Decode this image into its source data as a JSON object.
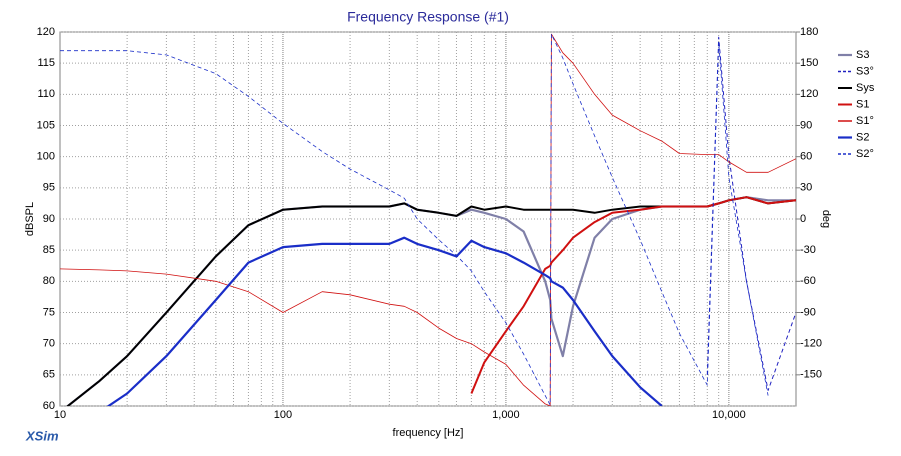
{
  "chart_data": {
    "type": "line",
    "title": "Frequency Response (#1)",
    "x_label": "frequency [Hz]",
    "y_label": "dBSPL",
    "y2_label": "deg",
    "watermark": "XSim",
    "xscale": "log",
    "grid": true,
    "xlim": [
      10,
      20000
    ],
    "xticks": [
      10,
      100,
      {
        "value": 1000,
        "label": "1,000"
      },
      {
        "value": 10000,
        "label": "10,000"
      }
    ],
    "xminor_ticks": [
      20,
      30,
      40,
      50,
      60,
      70,
      80,
      90,
      200,
      300,
      400,
      500,
      600,
      700,
      800,
      900,
      2000,
      3000,
      4000,
      5000,
      6000,
      7000,
      8000,
      9000
    ],
    "ylim": [
      60,
      120
    ],
    "yticks": [
      60,
      65,
      70,
      75,
      80,
      85,
      90,
      95,
      100,
      105,
      110,
      115,
      120
    ],
    "y2lim": [
      -180,
      180
    ],
    "y2ticks": [
      -150,
      -120,
      -90,
      -60,
      -30,
      0,
      30,
      60,
      90,
      120,
      150,
      180
    ],
    "x": [
      10,
      15,
      20,
      30,
      50,
      70,
      100,
      150,
      200,
      300,
      350,
      400,
      500,
      600,
      700,
      800,
      1000,
      1200,
      1500,
      1580,
      1600,
      1800,
      2000,
      2500,
      3000,
      4000,
      5000,
      6000,
      8000,
      9000,
      10000,
      12000,
      15000,
      20000
    ],
    "series": [
      {
        "name": "S3",
        "color": "#8080a8",
        "width": 2.2,
        "style": "solid",
        "values": [
          59,
          64,
          68,
          75,
          84,
          89,
          91.5,
          92,
          92,
          92,
          92.5,
          91.5,
          91,
          90.5,
          91.5,
          91,
          90,
          88,
          80,
          77,
          74,
          68,
          76,
          87,
          90,
          91.5,
          92,
          92,
          92,
          92.5,
          93,
          93.5,
          93,
          93
        ]
      },
      {
        "name": "S3°",
        "color": "#2020c0",
        "width": 1,
        "style": "dashed",
        "axis": "y2",
        "values": [
          null,
          null,
          null,
          null,
          null,
          null,
          null,
          null,
          null,
          null,
          null,
          null,
          null,
          null,
          null,
          null,
          null,
          null,
          null,
          null,
          null,
          null,
          null,
          null,
          null,
          null,
          null,
          null,
          -150,
          175,
          60,
          -60,
          -165,
          -90
        ]
      },
      {
        "name": "Sys",
        "color": "#000000",
        "width": 2,
        "style": "solid",
        "values": [
          59,
          64,
          68,
          75,
          84,
          89,
          91.5,
          92,
          92,
          92,
          92.5,
          91.5,
          91,
          90.5,
          92,
          91.5,
          92,
          91.5,
          91.5,
          91.5,
          91.5,
          91.5,
          91.5,
          91,
          91.5,
          92,
          92,
          92,
          92,
          92.5,
          93,
          93.5,
          92.5,
          93
        ]
      },
      {
        "name": "S1",
        "color": "#d01010",
        "width": 2,
        "style": "solid",
        "values": [
          null,
          null,
          null,
          null,
          null,
          null,
          null,
          null,
          null,
          null,
          null,
          null,
          null,
          null,
          62,
          67,
          72,
          76,
          82,
          82.5,
          83,
          85,
          87,
          89.5,
          91,
          91.5,
          92,
          92,
          92,
          92.5,
          93,
          93.5,
          92.5,
          93
        ]
      },
      {
        "name": "S1°",
        "color": "#d01010",
        "width": 0.8,
        "style": "solid",
        "axis": "y2",
        "values": [
          -48,
          -49,
          -50,
          -53,
          -60,
          -70,
          -90,
          -70,
          -73,
          -82,
          -84,
          -90,
          -105,
          -115,
          -120,
          -128,
          -140,
          -160,
          -178,
          -180,
          178,
          160,
          150,
          120,
          100,
          85,
          75,
          63,
          62,
          62,
          55,
          45,
          45,
          58
        ]
      },
      {
        "name": "S2",
        "color": "#1a2ec8",
        "width": 2.2,
        "style": "solid",
        "values": [
          null,
          59,
          62,
          68,
          77,
          83,
          85.5,
          86,
          86,
          86,
          87,
          86,
          85,
          84,
          86.5,
          85.5,
          84.5,
          83,
          81,
          80.5,
          80,
          79,
          77,
          72,
          68,
          63,
          60,
          null,
          null,
          null,
          null,
          null,
          null,
          null
        ]
      },
      {
        "name": "S2°",
        "color": "#1a2ec8",
        "width": 0.8,
        "style": "dashed",
        "axis": "y2",
        "values": [
          162,
          162,
          162,
          158,
          140,
          118,
          92,
          65,
          48,
          28,
          20,
          0,
          -20,
          -35,
          -50,
          -70,
          -100,
          -130,
          -170,
          -179,
          178,
          155,
          130,
          80,
          40,
          -20,
          -70,
          -110,
          -160,
          170,
          40,
          -60,
          -170,
          null
        ]
      }
    ]
  }
}
